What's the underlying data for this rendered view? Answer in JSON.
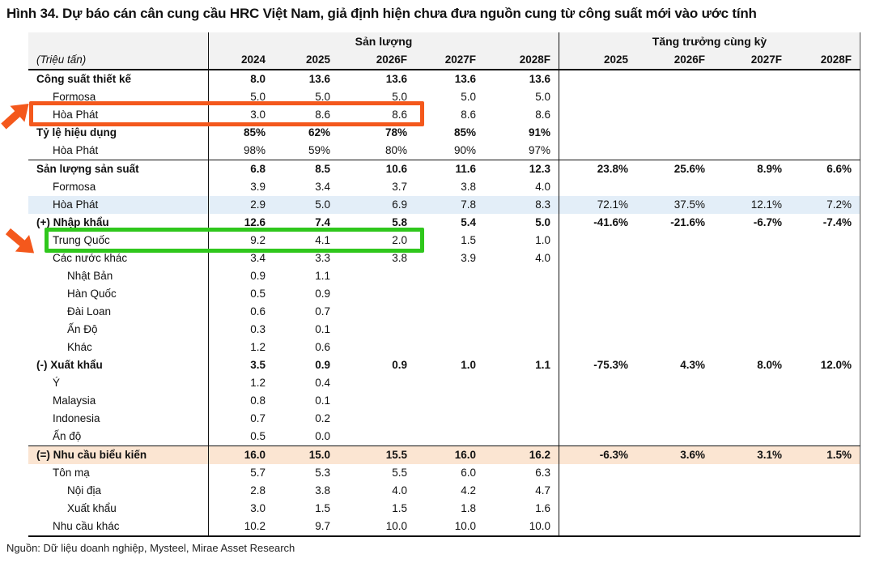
{
  "title": "Hình 34. Dự báo cán cân cung cầu HRC Việt Nam, giả định hiện chưa đưa nguồn cung từ công suất mới vào ước tính",
  "source": "Nguồn: Dữ liệu doanh nghiệp, Mysteel, Mirae Asset Research",
  "colors": {
    "accent_orange": "#F4581C",
    "accent_green": "#2FC71C",
    "row_blue": "#E3EEF8",
    "row_peach": "#FBE5D2",
    "header_gray": "#F2F2F2"
  },
  "annotations": {
    "orange_box": "khoanh đỏ cam: Hòa Phát công suất 2024–2026F",
    "green_box": "khoanh xanh lá: Trung Quốc nhập khẩu 2024–2026F"
  },
  "chart_data": {
    "type": "table",
    "unit_label": "(Triệu tấn)",
    "groups": [
      {
        "label": "Sản lượng",
        "columns": [
          "2024",
          "2025",
          "2026F",
          "2027F",
          "2028F"
        ]
      },
      {
        "label": "Tăng trưởng cùng kỳ",
        "columns": [
          "2025",
          "2026F",
          "2027F",
          "2028F"
        ]
      }
    ],
    "rows": [
      {
        "label": "Công suất thiết kế",
        "indent": 0,
        "style": "section",
        "v": [
          "8.0",
          "13.6",
          "13.6",
          "13.6",
          "13.6"
        ]
      },
      {
        "label": "Formosa",
        "indent": 1,
        "v": [
          "5.0",
          "5.0",
          "5.0",
          "5.0",
          "5.0"
        ]
      },
      {
        "label": "Hòa Phát",
        "indent": 1,
        "v": [
          "3.0",
          "8.6",
          "8.6",
          "8.6",
          "8.6"
        ]
      },
      {
        "label": "Tỷ lệ hiệu dụng",
        "indent": 0,
        "style": "section",
        "v": [
          "85%",
          "62%",
          "78%",
          "85%",
          "91%"
        ]
      },
      {
        "label": "Hòa Phát",
        "indent": 1,
        "v": [
          "98%",
          "59%",
          "80%",
          "90%",
          "97%"
        ]
      },
      {
        "label": "Sản lượng sản suất",
        "indent": 0,
        "style": "section",
        "sep": true,
        "v": [
          "6.8",
          "8.5",
          "10.6",
          "11.6",
          "12.3"
        ],
        "g": [
          "23.8%",
          "25.6%",
          "8.9%",
          "6.6%"
        ]
      },
      {
        "label": "Formosa",
        "indent": 1,
        "v": [
          "3.9",
          "3.4",
          "3.7",
          "3.8",
          "4.0"
        ]
      },
      {
        "label": "Hòa Phát",
        "indent": 1,
        "bg": "blue",
        "v": [
          "2.9",
          "5.0",
          "6.9",
          "7.8",
          "8.3"
        ],
        "g": [
          "72.1%",
          "37.5%",
          "12.1%",
          "7.2%"
        ]
      },
      {
        "label": "(+) Nhập khẩu",
        "indent": 0,
        "style": "section",
        "v": [
          "12.6",
          "7.4",
          "5.8",
          "5.4",
          "5.0"
        ],
        "g": [
          "-41.6%",
          "-21.6%",
          "-6.7%",
          "-7.4%"
        ]
      },
      {
        "label": "Trung Quốc",
        "indent": 1,
        "v": [
          "9.2",
          "4.1",
          "2.0",
          "1.5",
          "1.0"
        ]
      },
      {
        "label": "Các nước khác",
        "indent": 1,
        "v": [
          "3.4",
          "3.3",
          "3.8",
          "3.9",
          "4.0"
        ]
      },
      {
        "label": "Nhật Bản",
        "indent": 2,
        "v": [
          "0.9",
          "1.1",
          "",
          "",
          ""
        ]
      },
      {
        "label": "Hàn Quốc",
        "indent": 2,
        "v": [
          "0.5",
          "0.9",
          "",
          "",
          ""
        ]
      },
      {
        "label": "Đài Loan",
        "indent": 2,
        "v": [
          "0.6",
          "0.7",
          "",
          "",
          ""
        ]
      },
      {
        "label": "Ấn Độ",
        "indent": 2,
        "v": [
          "0.3",
          "0.1",
          "",
          "",
          ""
        ]
      },
      {
        "label": "Khác",
        "indent": 2,
        "v": [
          "1.2",
          "0.6",
          "",
          "",
          ""
        ]
      },
      {
        "label": "(-) Xuất khẩu",
        "indent": 0,
        "style": "section",
        "v": [
          "3.5",
          "0.9",
          "0.9",
          "1.0",
          "1.1"
        ],
        "g": [
          "-75.3%",
          "4.3%",
          "8.0%",
          "12.0%"
        ]
      },
      {
        "label": "Ý",
        "indent": 1,
        "v": [
          "1.2",
          "0.4",
          "",
          "",
          ""
        ]
      },
      {
        "label": "Malaysia",
        "indent": 1,
        "v": [
          "0.8",
          "0.1",
          "",
          "",
          ""
        ]
      },
      {
        "label": "Indonesia",
        "indent": 1,
        "v": [
          "0.7",
          "0.2",
          "",
          "",
          ""
        ]
      },
      {
        "label": "Ấn độ",
        "indent": 1,
        "v": [
          "0.5",
          "0.0",
          "",
          "",
          ""
        ]
      },
      {
        "label": "(=) Nhu cầu biểu kiến",
        "indent": 0,
        "style": "section",
        "sep": true,
        "bg": "peach",
        "v": [
          "16.0",
          "15.0",
          "15.5",
          "16.0",
          "16.2"
        ],
        "g": [
          "-6.3%",
          "3.6%",
          "3.1%",
          "1.5%"
        ]
      },
      {
        "label": "Tôn mạ",
        "indent": 1,
        "v": [
          "5.7",
          "5.3",
          "5.5",
          "6.0",
          "6.3"
        ]
      },
      {
        "label": "Nội địa",
        "indent": 2,
        "v": [
          "2.8",
          "3.8",
          "4.0",
          "4.2",
          "4.7"
        ]
      },
      {
        "label": "Xuất khẩu",
        "indent": 2,
        "v": [
          "3.0",
          "1.5",
          "1.5",
          "1.8",
          "1.6"
        ]
      },
      {
        "label": "Nhu cầu khác",
        "indent": 1,
        "v": [
          "10.2",
          "9.7",
          "10.0",
          "10.0",
          "10.0"
        ]
      }
    ]
  }
}
